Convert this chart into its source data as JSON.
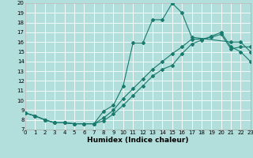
{
  "xlabel": "Humidex (Indice chaleur)",
  "bg_color": "#b2dfdb",
  "grid_color": "#ffffff",
  "line_color": "#1a7a6e",
  "xlim": [
    0,
    23
  ],
  "ylim": [
    7,
    20
  ],
  "xticks": [
    0,
    1,
    2,
    3,
    4,
    5,
    6,
    7,
    8,
    9,
    10,
    11,
    12,
    13,
    14,
    15,
    16,
    17,
    18,
    19,
    20,
    21,
    22,
    23
  ],
  "yticks": [
    7,
    8,
    9,
    10,
    11,
    12,
    13,
    14,
    15,
    16,
    17,
    18,
    19,
    20
  ],
  "line1_x": [
    0,
    1,
    2,
    3,
    4,
    5,
    6,
    7,
    8,
    9,
    10,
    11,
    12,
    13,
    14,
    15
  ],
  "line1_y": [
    8.7,
    8.4,
    8.0,
    7.7,
    7.7,
    7.6,
    7.6,
    7.6,
    8.9,
    9.5,
    11.5,
    15.9,
    15.9,
    18.3,
    18.3,
    20.0
  ],
  "line1b_x": [
    15,
    16,
    17,
    21,
    22,
    23
  ],
  "line1b_y": [
    20.0,
    19.0,
    16.5,
    16.0,
    16.0,
    15.0
  ],
  "line2_x": [
    0,
    1,
    2,
    3,
    4,
    5,
    6,
    7,
    8,
    9,
    10,
    11,
    12,
    13,
    14,
    15,
    16,
    17,
    18,
    19,
    20,
    21,
    22,
    23
  ],
  "line2_y": [
    8.7,
    8.4,
    8.0,
    7.7,
    7.7,
    7.6,
    7.6,
    7.6,
    8.2,
    9.0,
    10.2,
    11.2,
    12.2,
    13.2,
    14.0,
    14.8,
    15.5,
    16.3,
    16.3,
    16.5,
    16.8,
    15.3,
    15.5,
    15.5
  ],
  "line3_x": [
    0,
    1,
    2,
    3,
    4,
    5,
    6,
    7,
    8,
    9,
    10,
    11,
    12,
    13,
    14,
    15,
    16,
    17,
    18,
    19,
    20,
    21,
    22,
    23
  ],
  "line3_y": [
    8.7,
    8.4,
    8.0,
    7.7,
    7.7,
    7.6,
    7.6,
    7.6,
    7.9,
    8.6,
    9.5,
    10.5,
    11.5,
    12.5,
    13.2,
    13.6,
    14.8,
    15.8,
    16.2,
    16.6,
    17.0,
    15.5,
    15.0,
    14.0
  ]
}
